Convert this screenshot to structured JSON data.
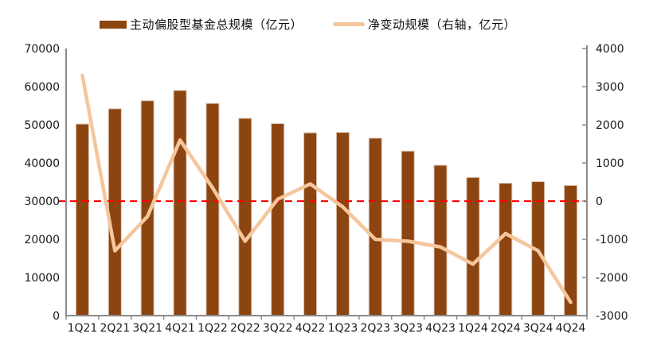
{
  "legend": {
    "items": [
      {
        "label": "主动偏股型基金总规模（亿元）",
        "swatch": "bar",
        "color": "#8C4510"
      },
      {
        "label": "净变动规模（右轴，亿元）",
        "swatch": "line",
        "color": "#F5C69C"
      }
    ]
  },
  "chart_data": {
    "type": "combo-bar-line-dual-axis",
    "title": "",
    "categories": [
      "1Q21",
      "2Q21",
      "3Q21",
      "4Q21",
      "1Q22",
      "2Q22",
      "3Q22",
      "4Q22",
      "1Q23",
      "2Q23",
      "3Q23",
      "4Q23",
      "1Q24",
      "2Q24",
      "3Q24",
      "4Q24"
    ],
    "series": [
      {
        "name": "主动偏股型基金总规模（亿元）",
        "type": "bar",
        "axis": "left",
        "color": "#8C4510",
        "values": [
          50200,
          54200,
          56300,
          59000,
          55600,
          51700,
          50300,
          47900,
          48000,
          46500,
          43100,
          39400,
          36200,
          34700,
          35100,
          34100
        ]
      },
      {
        "name": "净变动规模（右轴，亿元）",
        "type": "line",
        "axis": "right",
        "color": "#F5C69C",
        "values": [
          3300,
          -1300,
          -400,
          1600,
          350,
          -1050,
          50,
          450,
          -150,
          -1000,
          -1050,
          -1200,
          -1650,
          -850,
          -1300,
          -2650
        ]
      }
    ],
    "left_axis": {
      "min": 0,
      "max": 70000,
      "step": 10000
    },
    "right_axis": {
      "min": -3000,
      "max": 4000,
      "step": 1000
    },
    "reference_line": {
      "axis": "right",
      "value": 0,
      "color": "#FF0000",
      "style": "dashed"
    },
    "grid": false,
    "legend_position": "top",
    "axis_color": "#8C8C8C",
    "tick_label_color": "#1a1a1a"
  }
}
